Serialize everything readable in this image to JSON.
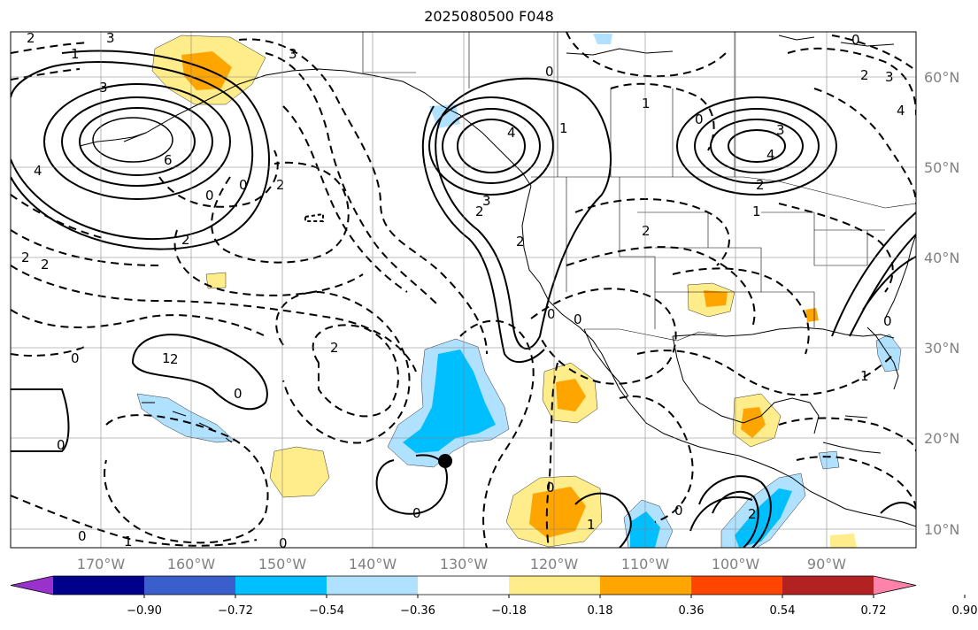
{
  "title": "2025080500 F048",
  "longitude_labels": [
    "170°W",
    "160°W",
    "150°W",
    "140°W",
    "130°W",
    "120°W",
    "110°W",
    "100°W",
    "90°W"
  ],
  "latitude_labels": [
    "60°N",
    "50°N",
    "40°N",
    "30°N",
    "20°N",
    "10°N"
  ],
  "colorbar": {
    "ticks": [
      "−0.90",
      "−0.72",
      "−0.54",
      "−0.36",
      "−0.18",
      "0.18",
      "0.36",
      "0.54",
      "0.72",
      "0.90"
    ],
    "colors": [
      "#9932cc",
      "#00008b",
      "#3a5fcd",
      "#00bfff",
      "#b0e2ff",
      "#ffffff",
      "#ffec8b",
      "#ffa500",
      "#ff4500",
      "#b22222",
      "#ff82ab"
    ]
  },
  "contour_labels": [
    {
      "text": "2"
    },
    {
      "text": "1"
    },
    {
      "text": "3"
    },
    {
      "text": "3"
    },
    {
      "text": "4"
    },
    {
      "text": "6"
    },
    {
      "text": "0"
    },
    {
      "text": "0"
    },
    {
      "text": "2"
    },
    {
      "text": "2"
    },
    {
      "text": "2"
    },
    {
      "text": "2"
    },
    {
      "text": "3"
    },
    {
      "text": "4"
    },
    {
      "text": "3"
    },
    {
      "text": "2"
    },
    {
      "text": "2"
    },
    {
      "text": "0"
    },
    {
      "text": "1"
    },
    {
      "text": "0"
    },
    {
      "text": "3"
    },
    {
      "text": "4"
    },
    {
      "text": "2"
    },
    {
      "text": "1"
    },
    {
      "text": "0"
    },
    {
      "text": "2"
    },
    {
      "text": "3"
    },
    {
      "text": "4"
    },
    {
      "text": "1"
    },
    {
      "text": "2"
    },
    {
      "text": "0"
    },
    {
      "text": "2"
    },
    {
      "text": "1"
    },
    {
      "text": "0"
    },
    {
      "text": "2"
    },
    {
      "text": "0"
    },
    {
      "text": "0"
    },
    {
      "text": "0"
    },
    {
      "text": "1"
    },
    {
      "text": "0"
    },
    {
      "text": "0"
    },
    {
      "text": "0"
    },
    {
      "text": "1"
    },
    {
      "text": "2"
    },
    {
      "text": "0"
    },
    {
      "text": "0"
    },
    {
      "text": "1"
    },
    {
      "text": "0"
    }
  ]
}
